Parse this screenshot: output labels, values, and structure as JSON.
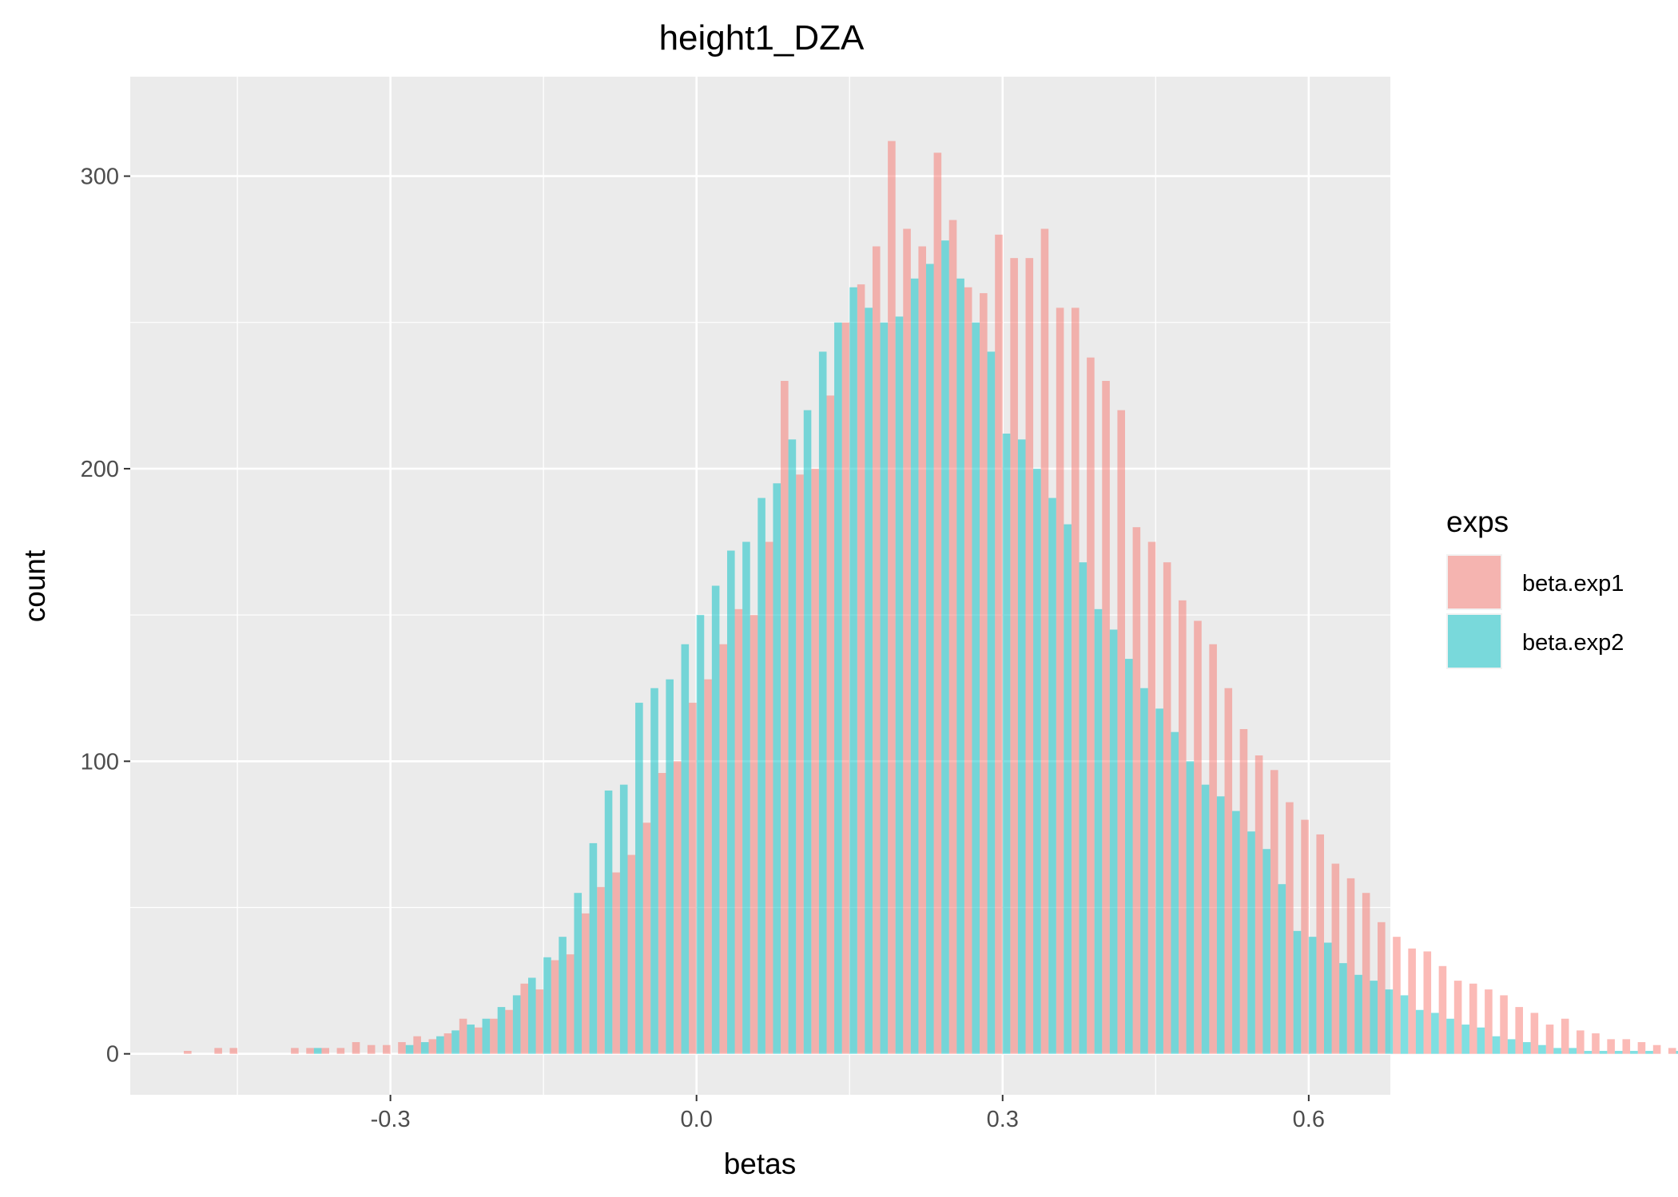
{
  "chart_data": {
    "type": "histogram",
    "title": "height1_DZA",
    "xlabel": "betas",
    "ylabel": "count",
    "xlim": [
      -0.555,
      0.68
    ],
    "ylim": [
      -14,
      334
    ],
    "x_ticks": [
      -0.3,
      0.0,
      0.3,
      0.6
    ],
    "x_tick_labels": [
      "-0.3",
      "0.0",
      "0.3",
      "0.6"
    ],
    "y_ticks": [
      0,
      100,
      200,
      300
    ],
    "y_tick_labels": [
      "0",
      "100",
      "200",
      "300"
    ],
    "grid": true,
    "bin_width": 0.015,
    "x_start": -0.495,
    "legend": {
      "title": "exps",
      "position": "right",
      "entries": [
        "beta.exp1",
        "beta.exp2"
      ]
    },
    "series": [
      {
        "name": "beta.exp1",
        "color": "#F8766D",
        "values": [
          1,
          0,
          2,
          2,
          0,
          0,
          0,
          2,
          2,
          2,
          2,
          4,
          3,
          3,
          4,
          6,
          5,
          7,
          12,
          9,
          12,
          15,
          24,
          22,
          32,
          34,
          48,
          57,
          62,
          68,
          79,
          96,
          100,
          120,
          128,
          140,
          152,
          150,
          175,
          230,
          198,
          200,
          225,
          250,
          263,
          276,
          312,
          282,
          276,
          308,
          285,
          262,
          260,
          280,
          272,
          272,
          282,
          255,
          255,
          238,
          230,
          220,
          180,
          175,
          168,
          155,
          148,
          140,
          125,
          111,
          102,
          97,
          86,
          80,
          75,
          65,
          60,
          55,
          45,
          40,
          36,
          35,
          30,
          25,
          24,
          22,
          20,
          16,
          14,
          10,
          12,
          8,
          7,
          5,
          5,
          4,
          3,
          2,
          2,
          1,
          1,
          0,
          0,
          0,
          0,
          0,
          0,
          0,
          0,
          0,
          0,
          0,
          0,
          0,
          0,
          0,
          0,
          0,
          0,
          0,
          0,
          0,
          0,
          0,
          0
        ]
      },
      {
        "name": "beta.exp2",
        "color": "#00BFC4",
        "values": [
          0,
          0,
          0,
          0,
          0,
          0,
          0,
          0,
          2,
          0,
          0,
          0,
          0,
          0,
          3,
          4,
          6,
          8,
          10,
          12,
          16,
          20,
          26,
          33,
          40,
          55,
          72,
          90,
          92,
          120,
          125,
          128,
          140,
          150,
          160,
          172,
          175,
          190,
          195,
          210,
          220,
          240,
          250,
          262,
          255,
          250,
          252,
          265,
          270,
          278,
          265,
          250,
          240,
          212,
          210,
          200,
          190,
          181,
          168,
          152,
          145,
          135,
          125,
          118,
          110,
          100,
          92,
          88,
          83,
          76,
          70,
          58,
          42,
          40,
          38,
          31,
          27,
          25,
          22,
          20,
          15,
          14,
          12,
          10,
          9,
          6,
          5,
          4,
          3,
          2,
          2,
          1,
          1,
          1,
          1,
          1,
          0,
          1,
          0,
          0,
          2,
          0,
          0,
          2,
          0,
          0,
          0,
          0,
          0,
          0,
          0,
          0,
          0,
          0,
          0,
          0,
          0,
          0,
          0,
          0,
          0,
          0,
          0,
          0,
          0
        ]
      }
    ]
  }
}
